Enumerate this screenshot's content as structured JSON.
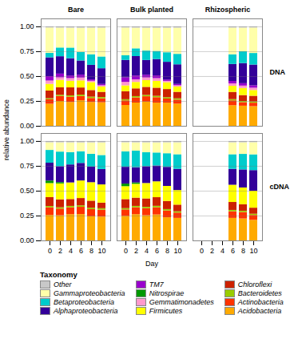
{
  "chart_data": {
    "type": "bar",
    "stacked": true,
    "xlabel": "Day",
    "ylabel": "relative abundance",
    "legend": "bottom",
    "legend_title": "Taxonomy",
    "grid": true,
    "columns": [
      "Bare",
      "Bulk planted",
      "Rhizospheric"
    ],
    "rows": [
      "DNA",
      "cDNA"
    ],
    "categories": [
      0,
      2,
      4,
      6,
      8,
      10
    ],
    "ylim": [
      0,
      1.08
    ],
    "yticks": [
      {
        "value": 0,
        "label": "0.00"
      },
      {
        "value": 0.25,
        "label": "0.25"
      },
      {
        "value": 0.5,
        "label": "0.50"
      },
      {
        "value": 0.75,
        "label": "0.75"
      },
      {
        "value": 1,
        "label": "1.00"
      }
    ],
    "series": [
      {
        "name": "Acidobacteria",
        "color": "#ffaa00"
      },
      {
        "name": "Actinobacteria",
        "color": "#ff3300"
      },
      {
        "name": "Bacteroidetes",
        "color": "#99cc00"
      },
      {
        "name": "Chloroflexi",
        "color": "#cc2200"
      },
      {
        "name": "Firmicutes",
        "color": "#ffff00"
      },
      {
        "name": "Gemmatimonadetes",
        "color": "#ff99cc"
      },
      {
        "name": "Nitrospirae",
        "color": "#009900"
      },
      {
        "name": "TM7",
        "color": "#9900cc"
      },
      {
        "name": "Alphaproteobacteria",
        "color": "#330099"
      },
      {
        "name": "Betaproteobacteria",
        "color": "#00cccc"
      },
      {
        "name": "Gammaproteobacteria",
        "color": "#ffffaa"
      },
      {
        "name": "Other",
        "color": "#c8c8c8"
      }
    ],
    "panels": [
      {
        "row": "DNA",
        "column": "Bare",
        "values": [
          [
            0.2222,
            0.25,
            0.24,
            0.2571,
            0.24,
            0.2368
          ],
          [
            0.0444,
            0.05,
            0.0533,
            0.0429,
            0.04,
            0.0395
          ],
          [
            0.0111,
            0.0125,
            0.0133,
            0.0143,
            0.0133,
            0.0132
          ],
          [
            0.0778,
            0.075,
            0.08,
            0.0714,
            0.0667,
            0.0526
          ],
          [
            0.0667,
            0.075,
            0.0667,
            0.0714,
            0.08,
            0.0526
          ],
          [
            0.0333,
            0.025,
            0.0267,
            0.0286,
            0.0133,
            0.0132
          ],
          [
            0,
            0,
            0,
            0,
            0,
            0
          ],
          [
            0.0444,
            0.0375,
            0.0267,
            0.0286,
            0.0133,
            0.0132
          ],
          [
            0.1889,
            0.175,
            0.1733,
            0.1429,
            0.1467,
            0.1579
          ],
          [
            0.0444,
            0.0875,
            0.1067,
            0.0857,
            0.1067,
            0.1184
          ],
          [
            0.2556,
            0.2,
            0.2,
            0.2429,
            0.2667,
            0.2895
          ],
          [
            0.0111,
            0.0125,
            0.0133,
            0.0143,
            0.0133,
            0.0132
          ]
        ]
      },
      {
        "row": "DNA",
        "column": "Bulk planted",
        "values": [
          [
            0.2093,
            0.2338,
            0.2432,
            0.2329,
            0.2329,
            0.2237
          ],
          [
            0.0465,
            0.0519,
            0.0541,
            0.0548,
            0.0411,
            0.0395
          ],
          [
            0.0116,
            0.013,
            0.0135,
            0.0137,
            0.0137,
            0.0132
          ],
          [
            0.0814,
            0.0779,
            0.0811,
            0.0822,
            0.0822,
            0.0658
          ],
          [
            0.0581,
            0.0649,
            0.0676,
            0.0685,
            0.0685,
            0.0526
          ],
          [
            0.0349,
            0.026,
            0.027,
            0.0274,
            0.0137,
            0.0132
          ],
          [
            0,
            0,
            0,
            0,
            0,
            0
          ],
          [
            0.0465,
            0.039,
            0.027,
            0.0274,
            0.0137,
            0.0132
          ],
          [
            0.1744,
            0.1948,
            0.1486,
            0.1644,
            0.1781,
            0.1974
          ],
          [
            0.0465,
            0.0779,
            0.0946,
            0.0822,
            0.0959,
            0.1053
          ],
          [
            0.2791,
            0.2078,
            0.2297,
            0.2329,
            0.2466,
            0.2632
          ],
          [
            0.0116,
            0.013,
            0.0135,
            0.0137,
            0.0137,
            0.0132
          ]
        ]
      },
      {
        "row": "DNA",
        "column": "Rhizospheric",
        "values": [
          [
            0,
            0,
            0,
            0.2073,
            0.2024,
            0.1977
          ],
          [
            0,
            0,
            0,
            0.0488,
            0.0357,
            0.0349
          ],
          [
            0,
            0,
            0,
            0.0122,
            0.0119,
            0.0116
          ],
          [
            0,
            0,
            0,
            0.0732,
            0.0595,
            0.0581
          ],
          [
            0,
            0,
            0,
            0.061,
            0.0714,
            0.0581
          ],
          [
            0,
            0,
            0,
            0.0244,
            0.0238,
            0.0233
          ],
          [
            0,
            0,
            0,
            0,
            0,
            0
          ],
          [
            0,
            0,
            0,
            0.0244,
            0.0238,
            0.0233
          ],
          [
            0,
            0,
            0,
            0.1707,
            0.2024,
            0.2093
          ],
          [
            0,
            0,
            0,
            0.0976,
            0.119,
            0.1163
          ],
          [
            0,
            0,
            0,
            0.2683,
            0.2381,
            0.2558
          ],
          [
            0,
            0,
            0,
            0.0122,
            0.0119,
            0.0116
          ]
        ]
      },
      {
        "row": "cDNA",
        "column": "Bare",
        "values": [
          [
            0.2564,
            0.2533,
            0.2639,
            0.2647,
            0.2429,
            0.2394
          ],
          [
            0.0769,
            0.0667,
            0.0694,
            0.0735,
            0.0714,
            0.0704
          ],
          [
            0.0128,
            0.0133,
            0.0139,
            0.0147,
            0.0143,
            0.0141
          ],
          [
            0.0897,
            0.08,
            0.0694,
            0.0735,
            0.0714,
            0.0563
          ],
          [
            0.141,
            0.16,
            0.1667,
            0.1765,
            0.1857,
            0.1831
          ],
          [
            0,
            0,
            0,
            0,
            0,
            0
          ],
          [
            0.0256,
            0.0133,
            0,
            0,
            0,
            0
          ],
          [
            0,
            0,
            0,
            0,
            0,
            0
          ],
          [
            0.1795,
            0.16,
            0.1806,
            0.1765,
            0.1571,
            0.1549
          ],
          [
            0.1282,
            0.1467,
            0.125,
            0.1176,
            0.1286,
            0.1408
          ],
          [
            0.0769,
            0.0933,
            0.0972,
            0.0882,
            0.1143,
            0.1268
          ],
          [
            0.0128,
            0.0133,
            0.0139,
            0.0147,
            0.0143,
            0.0141
          ]
        ]
      },
      {
        "row": "cDNA",
        "column": "Bulk planted",
        "values": [
          [
            0.2468,
            0.2639,
            0.2535,
            0.2609,
            0.2329,
            0.2267
          ],
          [
            0.0649,
            0.0694,
            0.0704,
            0.0725,
            0.0685,
            0.0533
          ],
          [
            0.013,
            0.0139,
            0.0141,
            0.0145,
            0.0137,
            0.0133
          ],
          [
            0.0909,
            0.0833,
            0.0845,
            0.087,
            0.0822,
            0.0667
          ],
          [
            0.1299,
            0.1389,
            0.1549,
            0.1594,
            0.1507,
            0.1467
          ],
          [
            0,
            0,
            0,
            0,
            0,
            0
          ],
          [
            0.026,
            0.0139,
            0,
            0,
            0,
            0
          ],
          [
            0,
            0,
            0,
            0,
            0,
            0
          ],
          [
            0.1688,
            0.1528,
            0.169,
            0.1594,
            0.1918,
            0.2133
          ],
          [
            0.1558,
            0.1667,
            0.1408,
            0.1304,
            0.137,
            0.1467
          ],
          [
            0.0909,
            0.0833,
            0.0986,
            0.1014,
            0.1096,
            0.12
          ],
          [
            0.013,
            0.0139,
            0.0141,
            0.0145,
            0.0137,
            0.0133
          ]
        ]
      },
      {
        "row": "cDNA",
        "column": "Rhizospheric",
        "values": [
          [
            0,
            0,
            0,
            0.2267,
            0.2208,
            0.2073
          ],
          [
            0,
            0,
            0,
            0.0667,
            0.0649,
            0.0488
          ],
          [
            0,
            0,
            0,
            0.0133,
            0.013,
            0.0122
          ],
          [
            0,
            0,
            0,
            0.08,
            0.0649,
            0.061
          ],
          [
            0,
            0,
            0,
            0.1733,
            0.1688,
            0.1707
          ],
          [
            0,
            0,
            0,
            0,
            0,
            0
          ],
          [
            0,
            0,
            0,
            0,
            0,
            0
          ],
          [
            0,
            0,
            0,
            0,
            0,
            0
          ],
          [
            0,
            0,
            0,
            0.16,
            0.1818,
            0.2073
          ],
          [
            0,
            0,
            0,
            0.1467,
            0.1558,
            0.1585
          ],
          [
            0,
            0,
            0,
            0.12,
            0.1169,
            0.122
          ],
          [
            0,
            0,
            0,
            0.0133,
            0.013,
            0.0122
          ]
        ]
      }
    ]
  }
}
